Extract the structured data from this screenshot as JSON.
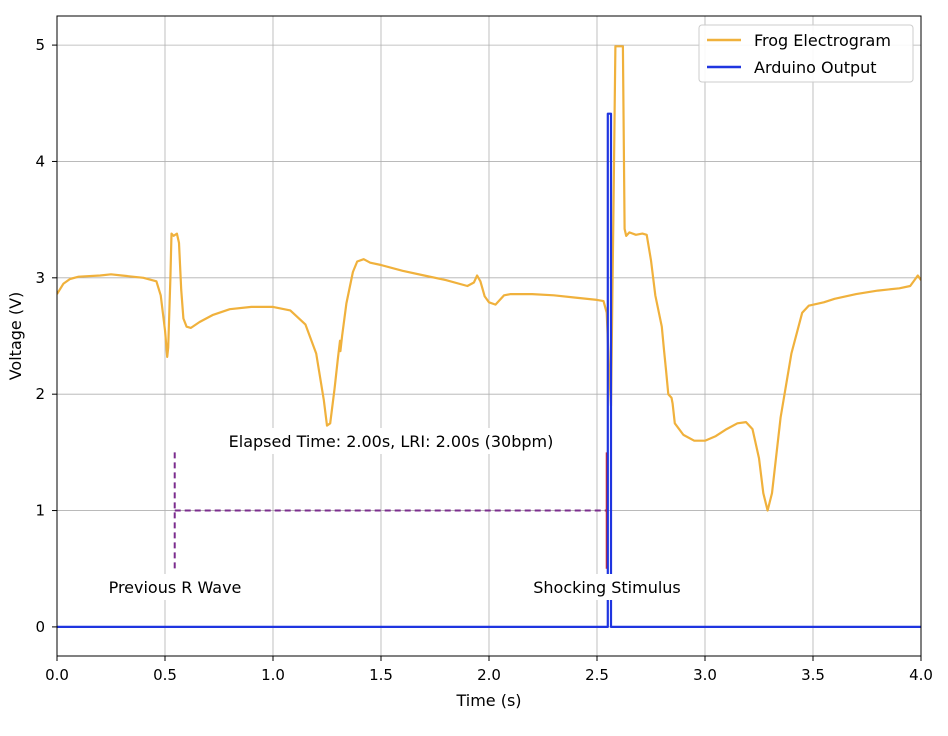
{
  "chart_data": {
    "type": "line",
    "title": "",
    "xlabel": "Time (s)",
    "ylabel": "Voltage (V)",
    "xlim": [
      0.0,
      4.0
    ],
    "ylim": [
      -0.25,
      5.25
    ],
    "xticks": [
      0.0,
      0.5,
      1.0,
      1.5,
      2.0,
      2.5,
      3.0,
      3.5,
      4.0
    ],
    "xtick_labels": [
      "0.0",
      "0.5",
      "1.0",
      "1.5",
      "2.0",
      "2.5",
      "3.0",
      "3.5",
      "4.0"
    ],
    "yticks": [
      0,
      1,
      2,
      3,
      4,
      5
    ],
    "ytick_labels": [
      "0",
      "1",
      "2",
      "3",
      "4",
      "5"
    ],
    "grid": true,
    "legend_position": "top-right",
    "series": [
      {
        "name": "Frog Electrogram",
        "color": "#f0b13c",
        "points": [
          [
            0.0,
            2.86
          ],
          [
            0.03,
            2.95
          ],
          [
            0.06,
            2.99
          ],
          [
            0.1,
            3.01
          ],
          [
            0.2,
            3.02
          ],
          [
            0.25,
            3.03
          ],
          [
            0.3,
            3.02
          ],
          [
            0.4,
            3.0
          ],
          [
            0.46,
            2.97
          ],
          [
            0.48,
            2.85
          ],
          [
            0.5,
            2.55
          ],
          [
            0.51,
            2.32
          ],
          [
            0.515,
            2.4
          ],
          [
            0.525,
            3.0
          ],
          [
            0.53,
            3.38
          ],
          [
            0.54,
            3.36
          ],
          [
            0.555,
            3.38
          ],
          [
            0.565,
            3.3
          ],
          [
            0.575,
            2.9
          ],
          [
            0.585,
            2.65
          ],
          [
            0.6,
            2.58
          ],
          [
            0.62,
            2.57
          ],
          [
            0.66,
            2.62
          ],
          [
            0.72,
            2.68
          ],
          [
            0.8,
            2.73
          ],
          [
            0.9,
            2.75
          ],
          [
            1.0,
            2.75
          ],
          [
            1.08,
            2.72
          ],
          [
            1.15,
            2.6
          ],
          [
            1.2,
            2.35
          ],
          [
            1.235,
            1.95
          ],
          [
            1.25,
            1.73
          ],
          [
            1.265,
            1.75
          ],
          [
            1.285,
            2.05
          ],
          [
            1.3,
            2.3
          ],
          [
            1.31,
            2.46
          ],
          [
            1.312,
            2.37
          ],
          [
            1.32,
            2.5
          ],
          [
            1.34,
            2.78
          ],
          [
            1.37,
            3.05
          ],
          [
            1.39,
            3.14
          ],
          [
            1.42,
            3.16
          ],
          [
            1.45,
            3.13
          ],
          [
            1.5,
            3.11
          ],
          [
            1.6,
            3.06
          ],
          [
            1.7,
            3.02
          ],
          [
            1.8,
            2.98
          ],
          [
            1.9,
            2.93
          ],
          [
            1.93,
            2.96
          ],
          [
            1.945,
            3.02
          ],
          [
            1.96,
            2.97
          ],
          [
            1.98,
            2.84
          ],
          [
            2.0,
            2.79
          ],
          [
            2.03,
            2.77
          ],
          [
            2.07,
            2.85
          ],
          [
            2.1,
            2.86
          ],
          [
            2.2,
            2.86
          ],
          [
            2.3,
            2.85
          ],
          [
            2.4,
            2.83
          ],
          [
            2.5,
            2.81
          ],
          [
            2.53,
            2.8
          ],
          [
            2.545,
            2.7
          ],
          [
            2.555,
            2.25
          ],
          [
            2.565,
            1.9
          ],
          [
            2.575,
            3.4
          ],
          [
            2.585,
            4.99
          ],
          [
            2.61,
            4.99
          ],
          [
            2.62,
            4.99
          ],
          [
            2.628,
            3.42
          ],
          [
            2.635,
            3.36
          ],
          [
            2.65,
            3.39
          ],
          [
            2.68,
            3.37
          ],
          [
            2.71,
            3.38
          ],
          [
            2.73,
            3.37
          ],
          [
            2.75,
            3.15
          ],
          [
            2.77,
            2.85
          ],
          [
            2.8,
            2.58
          ],
          [
            2.81,
            2.38
          ],
          [
            2.82,
            2.2
          ],
          [
            2.83,
            2.0
          ],
          [
            2.845,
            1.97
          ],
          [
            2.85,
            1.92
          ],
          [
            2.86,
            1.75
          ],
          [
            2.9,
            1.65
          ],
          [
            2.95,
            1.6
          ],
          [
            3.0,
            1.6
          ],
          [
            3.05,
            1.64
          ],
          [
            3.1,
            1.7
          ],
          [
            3.15,
            1.75
          ],
          [
            3.19,
            1.76
          ],
          [
            3.22,
            1.7
          ],
          [
            3.25,
            1.45
          ],
          [
            3.27,
            1.15
          ],
          [
            3.29,
            1.0
          ],
          [
            3.31,
            1.15
          ],
          [
            3.35,
            1.8
          ],
          [
            3.4,
            2.35
          ],
          [
            3.45,
            2.7
          ],
          [
            3.48,
            2.76
          ],
          [
            3.55,
            2.79
          ],
          [
            3.6,
            2.82
          ],
          [
            3.7,
            2.86
          ],
          [
            3.8,
            2.89
          ],
          [
            3.9,
            2.91
          ],
          [
            3.95,
            2.93
          ],
          [
            3.97,
            2.98
          ],
          [
            3.985,
            3.02
          ],
          [
            4.0,
            2.98
          ]
        ]
      },
      {
        "name": "Arduino Output",
        "color": "#1f35e0",
        "points": [
          [
            0.0,
            0.0
          ],
          [
            2.55,
            0.0
          ],
          [
            2.55,
            4.41
          ],
          [
            2.565,
            4.41
          ],
          [
            2.565,
            0.0
          ],
          [
            4.0,
            0.0
          ]
        ]
      }
    ],
    "annotations": {
      "elapsed_label": "Elapsed Time: 2.00s, LRI: 2.00s (30bpm)",
      "previous_r_label": "Previous R Wave",
      "shock_label": "Shocking Stimulus",
      "previous_r_x": 0.545,
      "shock_x": 2.545,
      "bracket_y": 1.0,
      "marker_range": [
        0.5,
        1.5
      ],
      "previous_r_color": "#7b2d8e",
      "shock_color": "#d62728"
    }
  }
}
